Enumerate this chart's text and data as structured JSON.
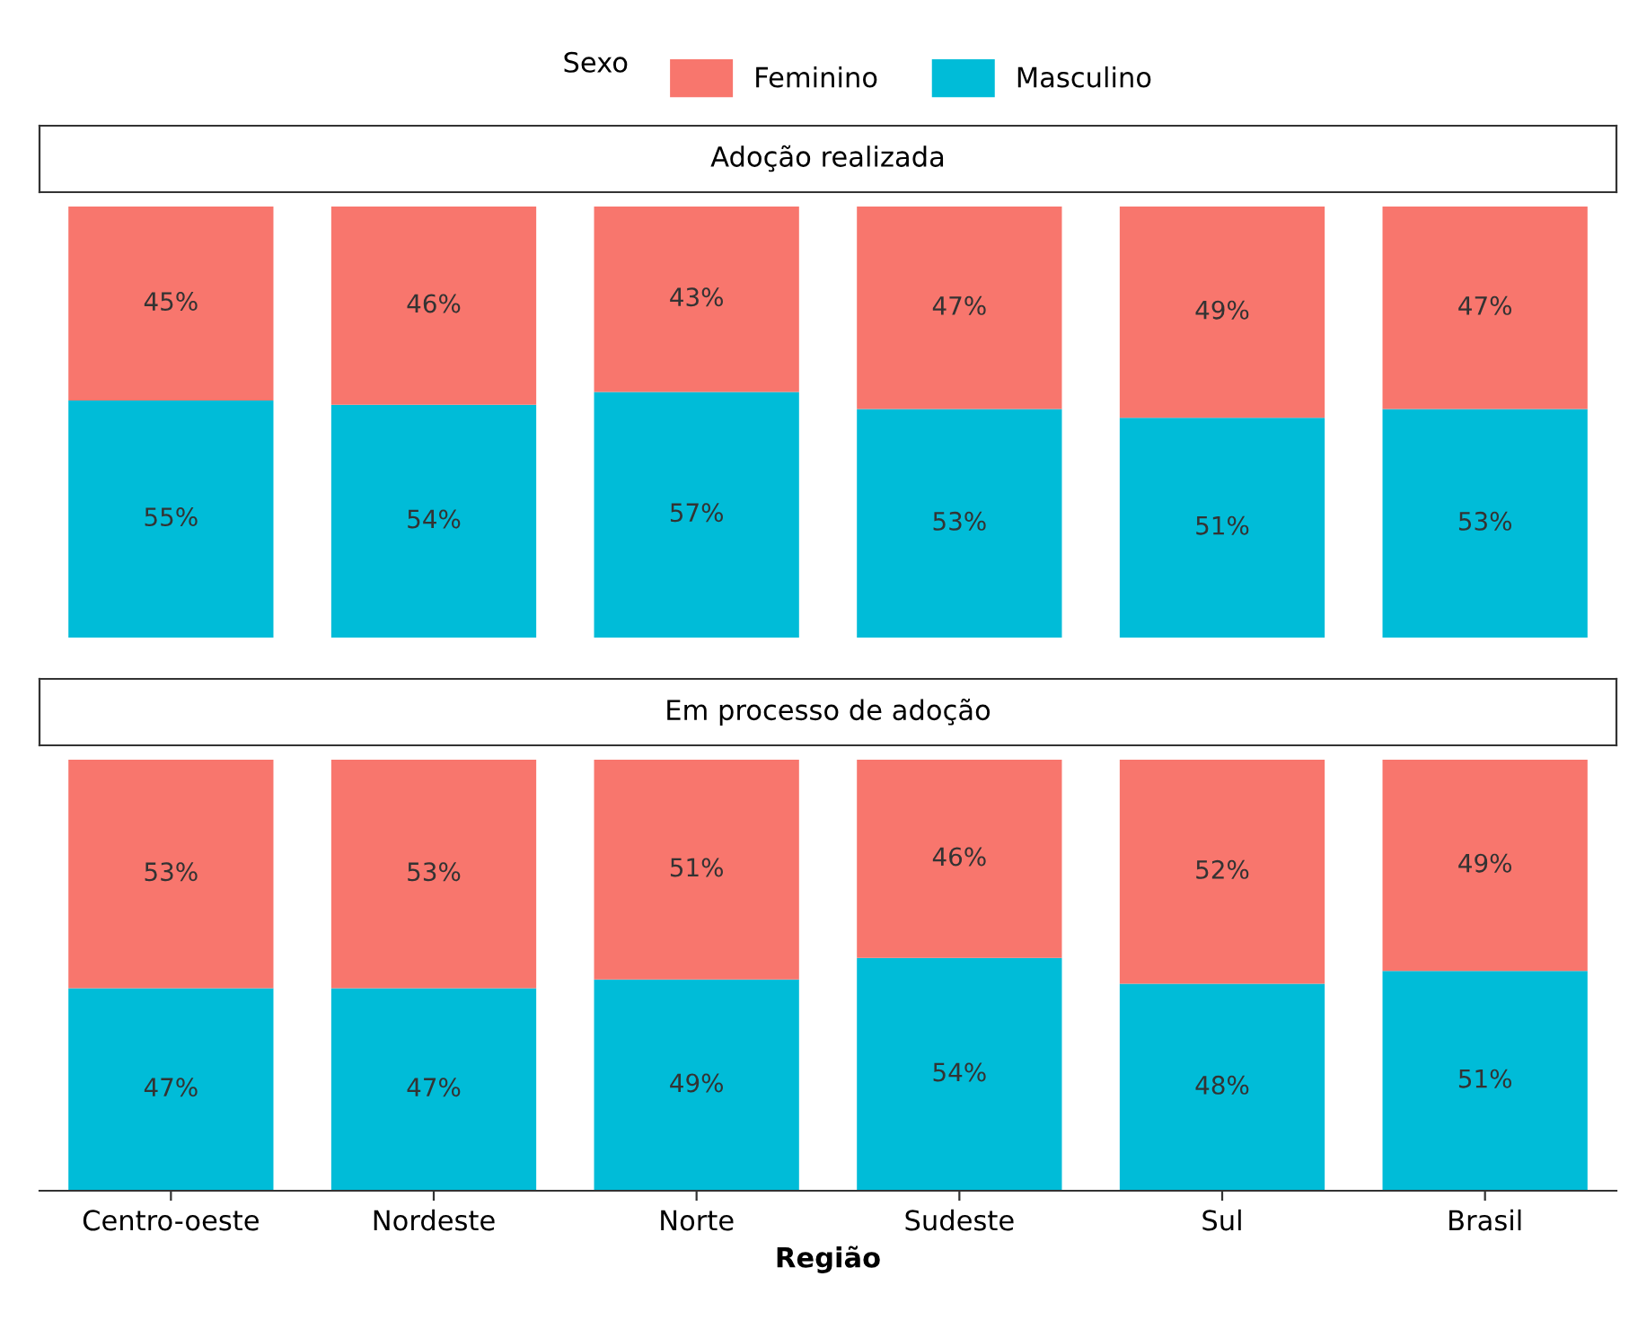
{
  "chart_data": [
    {
      "type": "bar",
      "title": "Adoção realizada",
      "stacked": true,
      "categories": [
        null,
        null,
        null,
        null,
        null,
        null
      ],
      "ylim": [
        0,
        100
      ],
      "tick_labels": false,
      "legend": "top",
      "legend_title": "Sexo",
      "series": [
        {
          "name": "Masculino",
          "color": "#00bcd8",
          "values": [
            55,
            54,
            57,
            53,
            51,
            53
          ],
          "value_labels": [
            "55%",
            "54%",
            "57%",
            "53%",
            "51%",
            "53%"
          ]
        },
        {
          "name": "Feminino",
          "color": "#f8766d",
          "values": [
            45,
            46,
            43,
            47,
            49,
            47
          ],
          "value_labels": [
            "45%",
            "46%",
            "43%",
            "47%",
            "49%",
            "47%"
          ]
        }
      ]
    },
    {
      "type": "bar",
      "title": "Em processo de adoção",
      "stacked": true,
      "categories": [
        "Centro-oeste",
        "Nordeste",
        "Norte",
        "Sudeste",
        "Sul",
        "Brasil"
      ],
      "ylim": [
        0,
        100
      ],
      "tick_labels": "x",
      "xlabel": "Região",
      "series": [
        {
          "name": "Masculino",
          "color": "#00bcd8",
          "values": [
            47,
            47,
            49,
            54,
            48,
            51
          ],
          "value_labels": [
            "47%",
            "47%",
            "49%",
            "54%",
            "48%",
            "51%"
          ]
        },
        {
          "name": "Feminino",
          "color": "#f8766d",
          "values": [
            53,
            53,
            51,
            46,
            52,
            49
          ],
          "value_labels": [
            "53%",
            "53%",
            "51%",
            "46%",
            "52%",
            "49%"
          ]
        }
      ]
    }
  ]
}
